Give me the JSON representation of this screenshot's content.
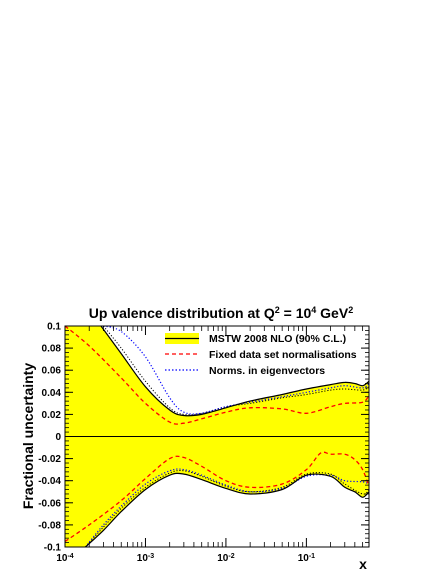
{
  "chart_data": {
    "type": "line",
    "title_main": "Up valence distribution at Q",
    "title_sup1": "2",
    "title_mid": " = 10",
    "title_sup2": "4",
    "title_end": " GeV",
    "title_sup3": "2",
    "ylabel": "Fractional uncertainty",
    "xlabel": "x",
    "x_log_scale": true,
    "xlim": [
      0.0001,
      0.6
    ],
    "ylim": [
      -0.1,
      0.1
    ],
    "x_ticks": [
      {
        "base": "10",
        "exp": "-4"
      },
      {
        "base": "10",
        "exp": "-3"
      },
      {
        "base": "10",
        "exp": "-2"
      },
      {
        "base": "10",
        "exp": "-1"
      }
    ],
    "y_ticks": [
      "-0.1",
      "-0.08",
      "-0.06",
      "-0.04",
      "-0.02",
      "0",
      "0.02",
      "0.04",
      "0.06",
      "0.08",
      "0.1"
    ],
    "colors": {
      "band": "#ffff00",
      "fixed": "#ff0000",
      "norms": "#0000ff",
      "line": "#000000"
    },
    "legend_position": "top-right",
    "legend": [
      {
        "label": "MSTW 2008 NLO (90% C.L.)",
        "style": "band"
      },
      {
        "label": "Fixed data set normalisations",
        "style": "dashed-red"
      },
      {
        "label": "Norms. in eigenvectors",
        "style": "dotted-blue"
      }
    ],
    "series": [
      {
        "role": "band-upper",
        "x": [
          0.00028,
          0.0005,
          0.001,
          0.002,
          0.003,
          0.005,
          0.01,
          0.02,
          0.05,
          0.1,
          0.2,
          0.3,
          0.4,
          0.5,
          0.6
        ],
        "y": [
          0.1,
          0.075,
          0.045,
          0.024,
          0.019,
          0.02,
          0.026,
          0.032,
          0.038,
          0.043,
          0.047,
          0.049,
          0.048,
          0.046,
          0.05
        ]
      },
      {
        "role": "band-lower",
        "x": [
          0.00018,
          0.0003,
          0.0005,
          0.001,
          0.002,
          0.003,
          0.005,
          0.01,
          0.02,
          0.05,
          0.1,
          0.2,
          0.3,
          0.4,
          0.5,
          0.6
        ],
        "y": [
          -0.1,
          -0.085,
          -0.068,
          -0.048,
          -0.035,
          -0.034,
          -0.039,
          -0.047,
          -0.052,
          -0.048,
          -0.035,
          -0.036,
          -0.046,
          -0.05,
          -0.055,
          -0.05
        ]
      },
      {
        "role": "fixed-upper",
        "x": [
          0.0001,
          0.0002,
          0.0005,
          0.001,
          0.002,
          0.003,
          0.005,
          0.01,
          0.02,
          0.05,
          0.1,
          0.2,
          0.3,
          0.5,
          0.6
        ],
        "y": [
          0.1,
          0.082,
          0.053,
          0.03,
          0.013,
          0.012,
          0.016,
          0.022,
          0.026,
          0.025,
          0.021,
          0.027,
          0.03,
          0.031,
          0.037
        ]
      },
      {
        "role": "fixed-lower",
        "x": [
          0.0001,
          0.0002,
          0.0005,
          0.001,
          0.002,
          0.003,
          0.005,
          0.01,
          0.02,
          0.05,
          0.1,
          0.15,
          0.2,
          0.3,
          0.4,
          0.5,
          0.6
        ],
        "y": [
          -0.095,
          -0.08,
          -0.058,
          -0.038,
          -0.02,
          -0.019,
          -0.027,
          -0.04,
          -0.046,
          -0.043,
          -0.03,
          -0.015,
          -0.016,
          -0.016,
          -0.021,
          -0.03,
          -0.045
        ]
      },
      {
        "role": "norms-upper",
        "x": [
          0.0003,
          0.0005,
          0.001,
          0.002,
          0.003,
          0.005,
          0.01,
          0.02,
          0.05,
          0.1,
          0.2,
          0.3,
          0.5,
          0.6
        ],
        "y": [
          0.1,
          0.095,
          0.072,
          0.035,
          0.022,
          0.021,
          0.027,
          0.031,
          0.036,
          0.04,
          0.044,
          0.046,
          0.044,
          0.048
        ]
      },
      {
        "role": "norms-lower",
        "x": [
          0.00018,
          0.0003,
          0.0005,
          0.001,
          0.002,
          0.003,
          0.005,
          0.01,
          0.02,
          0.05,
          0.1,
          0.2,
          0.3,
          0.5,
          0.6
        ],
        "y": [
          -0.1,
          -0.08,
          -0.063,
          -0.043,
          -0.031,
          -0.03,
          -0.035,
          -0.044,
          -0.05,
          -0.047,
          -0.036,
          -0.035,
          -0.04,
          -0.041,
          -0.043
        ]
      },
      {
        "role": "dotted-black-upper",
        "x": [
          0.0003,
          0.0005,
          0.001,
          0.002,
          0.003,
          0.005,
          0.01,
          0.02,
          0.05,
          0.1,
          0.2,
          0.3,
          0.5,
          0.6
        ],
        "y": [
          0.1,
          0.08,
          0.05,
          0.026,
          0.02,
          0.021,
          0.027,
          0.03,
          0.035,
          0.038,
          0.042,
          0.043,
          0.042,
          0.045
        ]
      },
      {
        "role": "dotted-black-lower",
        "x": [
          0.00018,
          0.0003,
          0.0005,
          0.001,
          0.002,
          0.003,
          0.005,
          0.01,
          0.02,
          0.05,
          0.1,
          0.2,
          0.3,
          0.5,
          0.6
        ],
        "y": [
          -0.1,
          -0.082,
          -0.065,
          -0.046,
          -0.033,
          -0.031,
          -0.036,
          -0.045,
          -0.05,
          -0.046,
          -0.034,
          -0.034,
          -0.043,
          -0.052,
          -0.048
        ]
      }
    ]
  }
}
